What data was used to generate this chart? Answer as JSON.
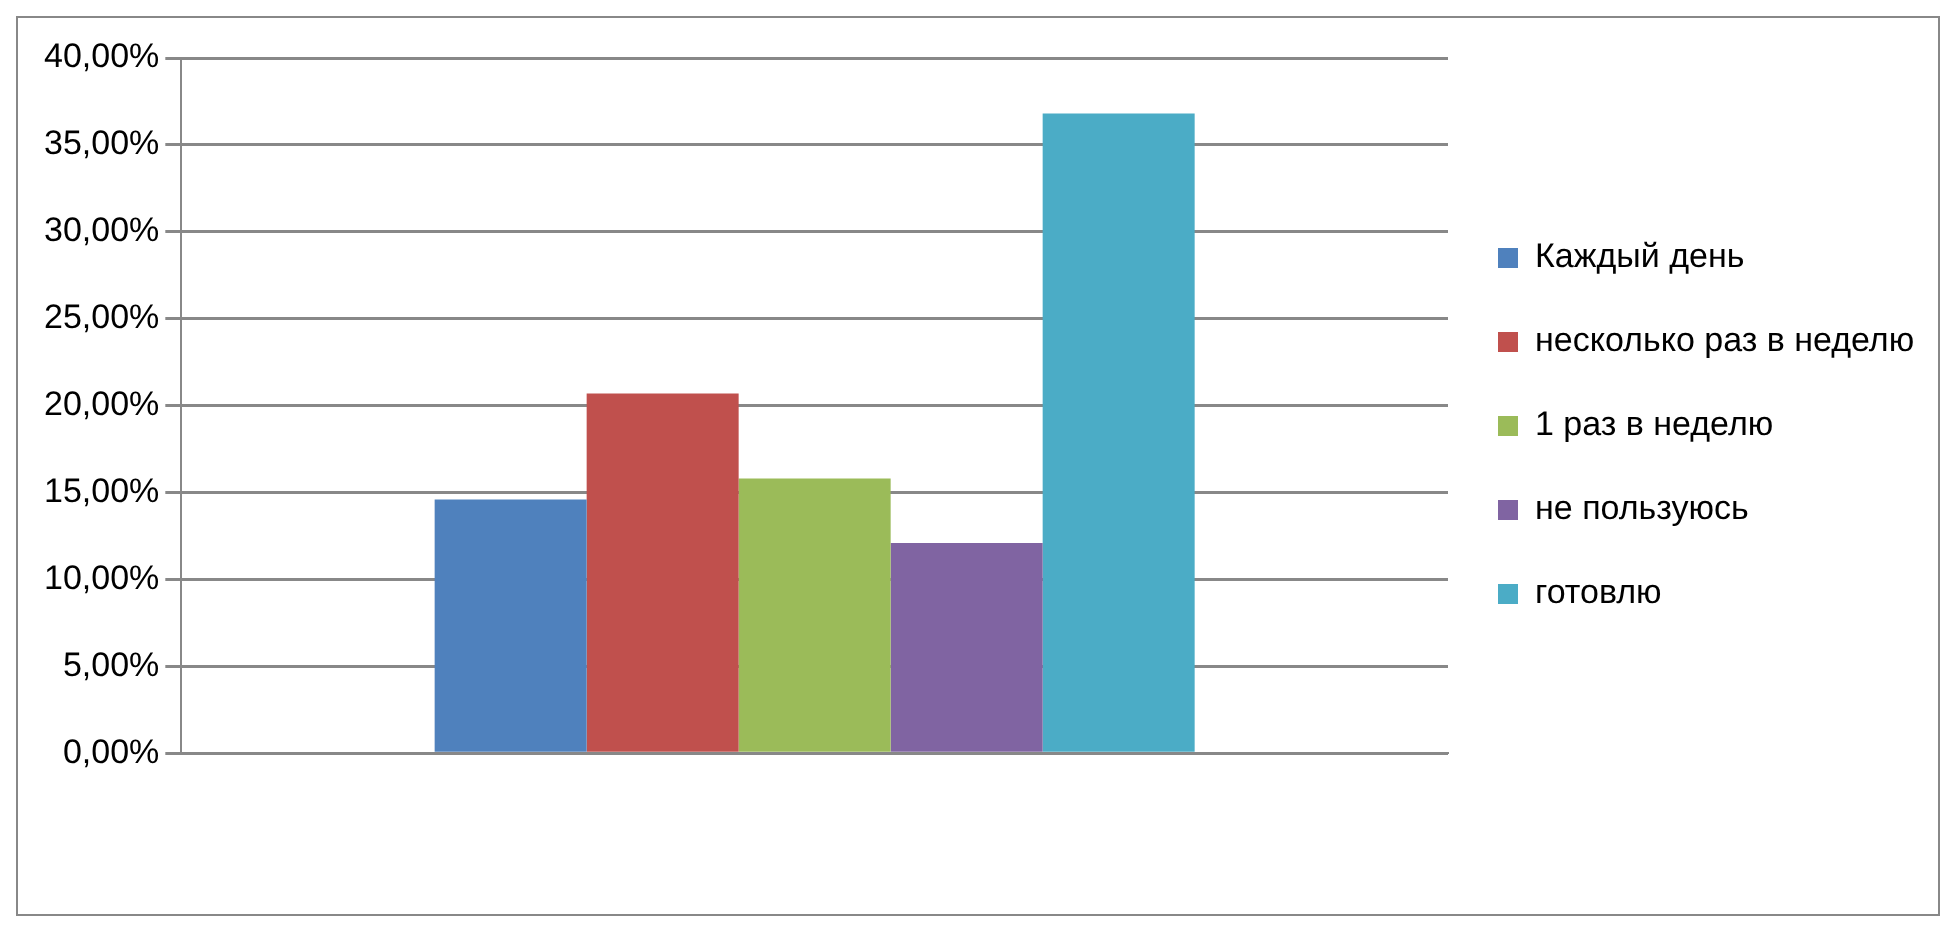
{
  "chart_data": {
    "type": "bar",
    "categories": [
      null
    ],
    "series": [
      {
        "name": "Каждый день",
        "color": "#4f81bd",
        "values": [
          14.6
        ]
      },
      {
        "name": "несколько раз в неделю",
        "color": "#c0504d",
        "values": [
          20.7
        ]
      },
      {
        "name": "1 раз в неделю",
        "color": "#9bbb59",
        "values": [
          15.8
        ]
      },
      {
        "name": "не пользуюсь",
        "color": "#8064a2",
        "values": [
          12.1
        ]
      },
      {
        "name": "готовлю",
        "color": "#4bacc6",
        "values": [
          36.8
        ]
      }
    ],
    "ylim": [
      0,
      40
    ],
    "yticks": [
      {
        "value": 0,
        "label": "0,00%"
      },
      {
        "value": 5,
        "label": "5,00%"
      },
      {
        "value": 10,
        "label": "10,00%"
      },
      {
        "value": 15,
        "label": "15,00%"
      },
      {
        "value": 20,
        "label": "20,00%"
      },
      {
        "value": 25,
        "label": "25,00%"
      },
      {
        "value": 30,
        "label": "30,00%"
      },
      {
        "value": 35,
        "label": "35,00%"
      },
      {
        "value": 40,
        "label": "40,00%"
      }
    ],
    "grid": "y",
    "legend": "right"
  }
}
